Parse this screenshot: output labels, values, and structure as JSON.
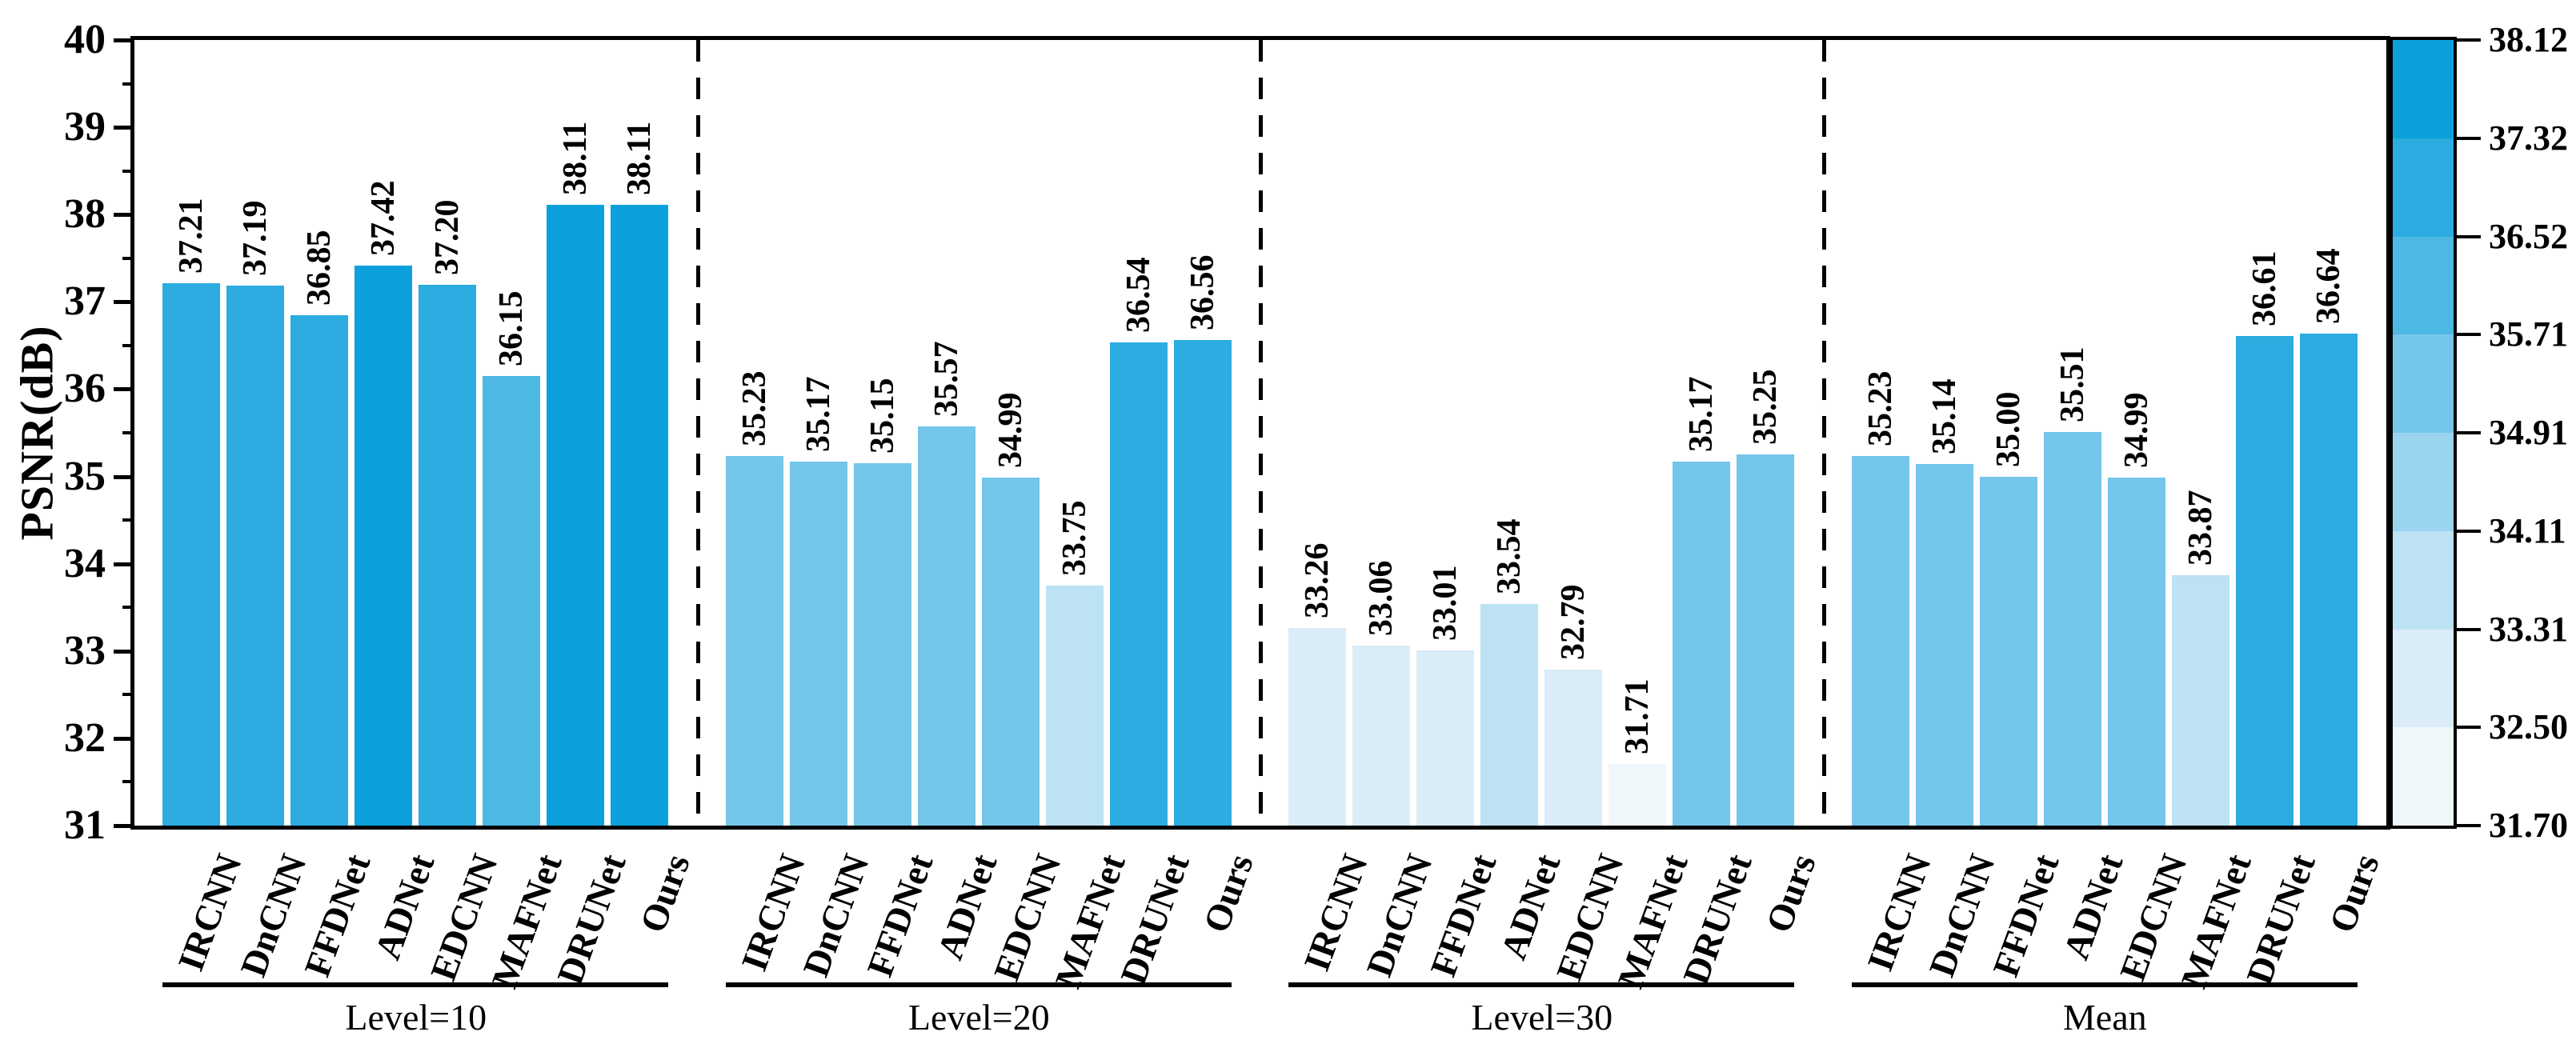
{
  "chart_data": {
    "type": "bar",
    "title": "",
    "xlabel": "",
    "ylabel": "PSNR(dB)",
    "ylim": [
      31,
      40
    ],
    "grid": false,
    "y_major_tick_step": 1,
    "y_minor_tick_step": 0.5,
    "y_tick_labels": [
      "31",
      "32",
      "33",
      "34",
      "35",
      "36",
      "37",
      "38",
      "39",
      "40"
    ],
    "categories": [
      "IRCNN",
      "DnCNN",
      "FFDNet",
      "ADNet",
      "EDCNN",
      "MAFNet",
      "DRUNet",
      "Ours"
    ],
    "groups": [
      {
        "label": "Level=10",
        "values": [
          37.21,
          37.19,
          36.85,
          37.42,
          37.2,
          36.15,
          38.11,
          38.11
        ],
        "value_labels": [
          "37.21",
          "37.19",
          "36.85",
          "37.42",
          "37.20",
          "36.15",
          "38.11",
          "38.11"
        ]
      },
      {
        "label": "Level=20",
        "values": [
          35.23,
          35.17,
          35.15,
          35.57,
          34.99,
          33.75,
          36.54,
          36.56
        ],
        "value_labels": [
          "35.23",
          "35.17",
          "35.15",
          "35.57",
          "34.99",
          "33.75",
          "36.54",
          "36.56"
        ]
      },
      {
        "label": "Level=30",
        "values": [
          33.26,
          33.06,
          33.01,
          33.54,
          32.79,
          31.71,
          35.17,
          35.25
        ],
        "value_labels": [
          "33.26",
          "33.06",
          "33.01",
          "33.54",
          "32.79",
          "31.71",
          "35.17",
          "35.25"
        ]
      },
      {
        "label": "Mean",
        "values": [
          35.23,
          35.14,
          35.0,
          35.51,
          34.99,
          33.87,
          36.61,
          36.64
        ],
        "value_labels": [
          "35.23",
          "35.14",
          "35.00",
          "35.51",
          "34.99",
          "33.87",
          "36.61",
          "36.64"
        ]
      }
    ],
    "colorbar": {
      "position": "right",
      "vmin": 31.7,
      "vmax": 38.12,
      "tick_labels_top_to_bottom": [
        "38.12",
        "37.32",
        "36.52",
        "35.71",
        "34.91",
        "34.11",
        "33.31",
        "32.50",
        "31.70"
      ],
      "segment_colors_top_to_bottom": [
        "#0ca1dc",
        "#2cace0",
        "#4eb8e5",
        "#74c6ea",
        "#9ad4ef",
        "#bce2f4",
        "#d9ecf8",
        "#f0f7fb"
      ]
    },
    "colors": {
      "axis": "#000000",
      "background": "#ffffff",
      "bar_edge": "#ffffff",
      "separator": "#000000"
    }
  }
}
